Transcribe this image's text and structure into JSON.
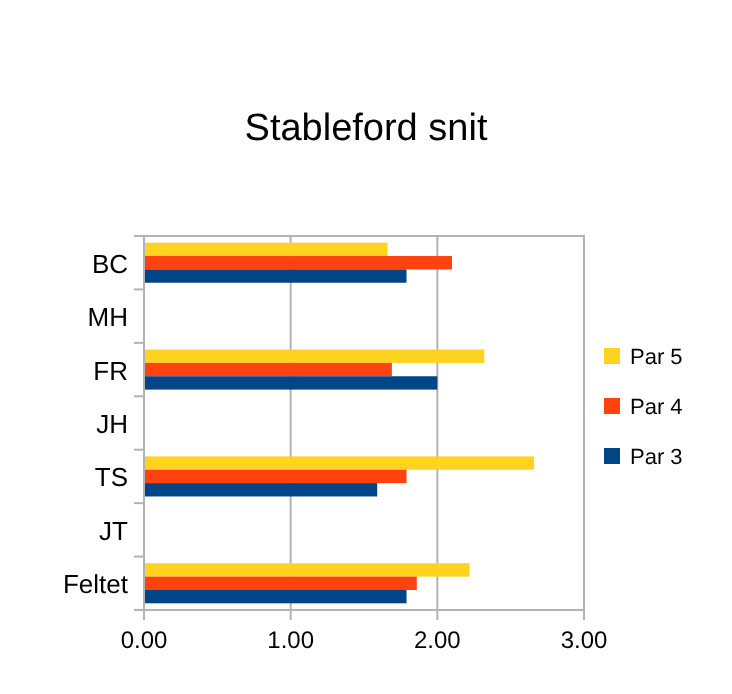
{
  "chart_data": {
    "type": "bar",
    "orientation": "horizontal",
    "title": "Stableford snit",
    "categories": [
      "BC",
      "MH",
      "FR",
      "JH",
      "TS",
      "JT",
      "Feltet"
    ],
    "series": [
      {
        "name": "Par 5",
        "color": "#ffd320",
        "values": [
          1.66,
          null,
          2.32,
          null,
          2.66,
          null,
          2.22
        ]
      },
      {
        "name": "Par 4",
        "color": "#ff420e",
        "values": [
          2.1,
          null,
          1.69,
          null,
          1.79,
          null,
          1.86
        ]
      },
      {
        "name": "Par 3",
        "color": "#004586",
        "values": [
          1.79,
          null,
          2.0,
          null,
          1.59,
          null,
          1.79
        ]
      }
    ],
    "xlim": [
      0,
      3
    ],
    "xticks": [
      {
        "value": 0,
        "label": "0.00"
      },
      {
        "value": 1,
        "label": "1.00"
      },
      {
        "value": 2,
        "label": "2.00"
      },
      {
        "value": 3,
        "label": "3.00"
      }
    ],
    "grid": "x",
    "legend": "right"
  }
}
